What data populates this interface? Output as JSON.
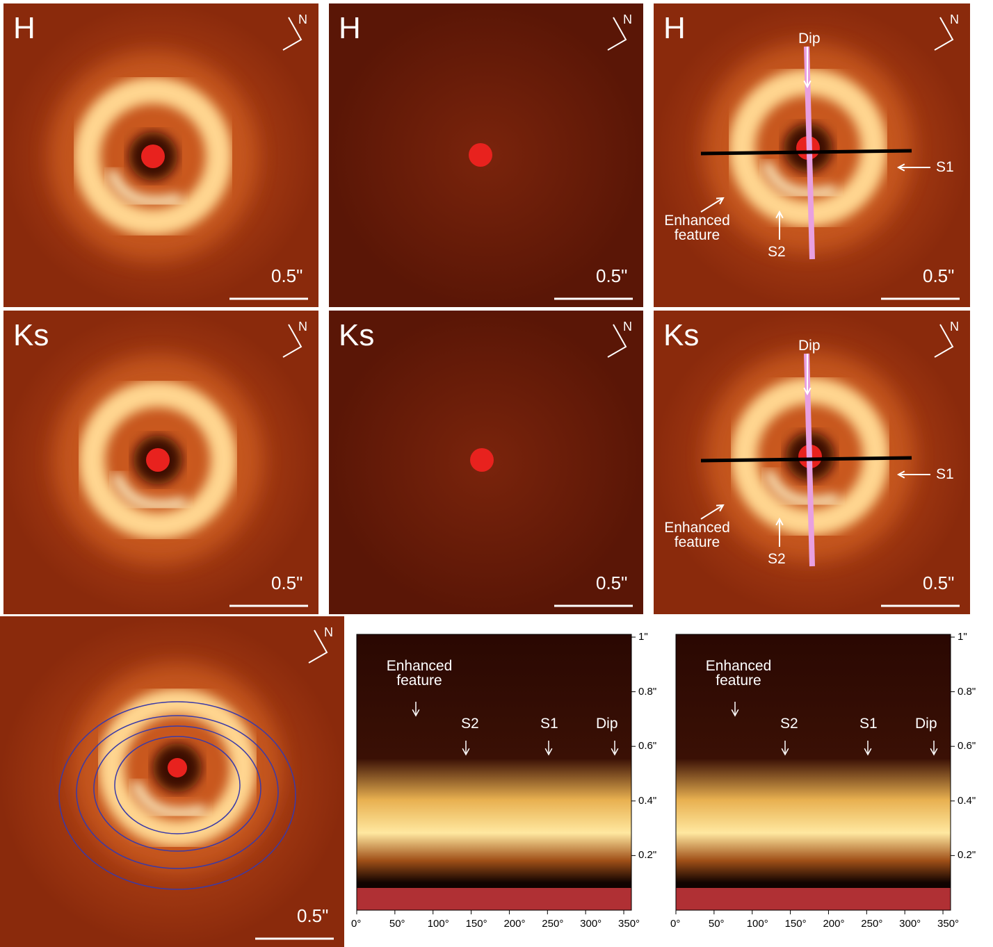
{
  "panels": [
    {
      "band": "H",
      "north": "N",
      "scale": "0.5\""
    },
    {
      "band": "H",
      "north": "N",
      "scale": "0.5\""
    },
    {
      "band": "H",
      "north": "N",
      "scale": "0.5\"",
      "annotations": [
        "Dip",
        "S1",
        "Enhanced feature",
        "S2"
      ]
    },
    {
      "band": "Ks",
      "north": "N",
      "scale": "0.5\""
    },
    {
      "band": "Ks",
      "north": "N",
      "scale": "0.5\""
    },
    {
      "band": "Ks",
      "north": "N",
      "scale": "0.5\"",
      "annotations": [
        "Dip",
        "S1",
        "Enhanced feature",
        "S2"
      ]
    },
    {
      "north": "N",
      "scale": "0.5\""
    }
  ],
  "plots": [
    {
      "annotations": [
        "Enhanced feature",
        "S2",
        "S1",
        "Dip"
      ],
      "xlim": [
        0,
        360
      ],
      "ylim": [
        0,
        1
      ],
      "xticks": [
        {
          "value": 0,
          "label": "0°"
        },
        {
          "value": 50,
          "label": "50°"
        },
        {
          "value": 100,
          "label": "100°"
        },
        {
          "value": 150,
          "label": "150°"
        },
        {
          "value": 200,
          "label": "200°"
        },
        {
          "value": 250,
          "label": "250°"
        },
        {
          "value": 300,
          "label": "300°"
        },
        {
          "value": 350,
          "label": "350°"
        }
      ],
      "yticks": [
        {
          "value": 0.2,
          "label": "0.2\""
        },
        {
          "value": 0.4,
          "label": "0.4\""
        },
        {
          "value": 0.6,
          "label": "0.6\""
        },
        {
          "value": 0.8,
          "label": "0.8\""
        },
        {
          "value": 1,
          "label": "1\""
        }
      ]
    },
    {
      "annotations": [
        "Enhanced feature",
        "S2",
        "S1",
        "Dip"
      ],
      "xlim": [
        0,
        360
      ],
      "ylim": [
        0,
        1
      ],
      "xticks": [
        {
          "value": 0,
          "label": "0°"
        },
        {
          "value": 50,
          "label": "50°"
        },
        {
          "value": 100,
          "label": "100°"
        },
        {
          "value": 150,
          "label": "150°"
        },
        {
          "value": 200,
          "label": "200°"
        },
        {
          "value": 250,
          "label": "250°"
        },
        {
          "value": 300,
          "label": "300°"
        },
        {
          "value": 350,
          "label": "350°"
        }
      ],
      "yticks": [
        {
          "value": 0.2,
          "label": "0.2\""
        },
        {
          "value": 0.4,
          "label": "0.4\""
        },
        {
          "value": 0.6,
          "label": "0.6\""
        },
        {
          "value": 0.8,
          "label": "0.8\""
        },
        {
          "value": 1,
          "label": "1\""
        }
      ]
    }
  ]
}
